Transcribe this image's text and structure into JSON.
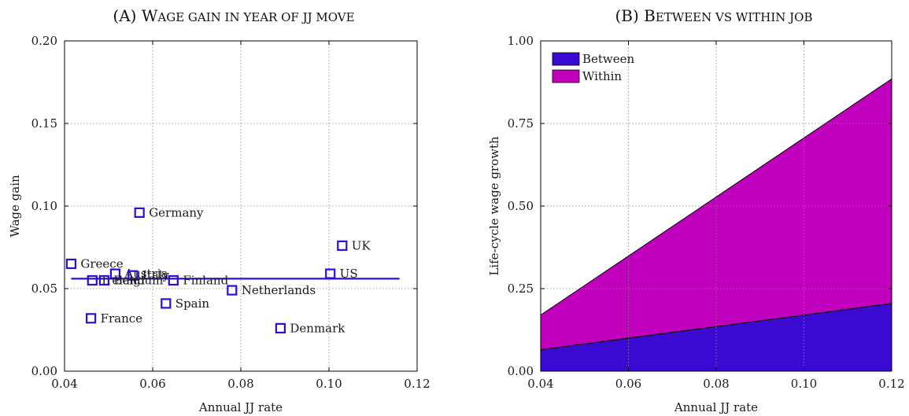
{
  "colors": {
    "marker": "#2a0fd6",
    "fit_line": "#2a0fd6",
    "between": "#3a0ad2",
    "within": "#c000bc"
  },
  "chart_data": [
    {
      "type": "scatter",
      "title": "(A) Wage gain in year of JJ move",
      "title_prefix": "(A) W",
      "title_rest": "AGE GAIN IN YEAR OF JJ MOVE",
      "xlabel": "Annual JJ rate",
      "ylabel": "Wage gain",
      "xlim": [
        0.04,
        0.12
      ],
      "ylim": [
        0.0,
        0.2
      ],
      "xticks": [
        "0.04",
        "0.06",
        "0.08",
        "0.10",
        "0.12"
      ],
      "yticks": [
        "0.00",
        "0.05",
        "0.10",
        "0.15",
        "0.20"
      ],
      "grid": true,
      "points": [
        {
          "label": "Germany",
          "x": 0.057,
          "y": 0.096
        },
        {
          "label": "UK",
          "x": 0.103,
          "y": 0.076
        },
        {
          "label": "Greece",
          "x": 0.0415,
          "y": 0.065
        },
        {
          "label": "US",
          "x": 0.1003,
          "y": 0.059
        },
        {
          "label": "Austria",
          "x": 0.0515,
          "y": 0.059
        },
        {
          "label": "Italy",
          "x": 0.0555,
          "y": 0.058
        },
        {
          "label": "Ireland",
          "x": 0.0463,
          "y": 0.055
        },
        {
          "label": "Belgium",
          "x": 0.049,
          "y": 0.055
        },
        {
          "label": "Finland",
          "x": 0.0647,
          "y": 0.055
        },
        {
          "label": "Netherlands",
          "x": 0.078,
          "y": 0.049
        },
        {
          "label": "Spain",
          "x": 0.063,
          "y": 0.041
        },
        {
          "label": "France",
          "x": 0.046,
          "y": 0.032
        },
        {
          "label": "Denmark",
          "x": 0.089,
          "y": 0.026
        }
      ],
      "fit_line": {
        "x": [
          0.0415,
          0.116
        ],
        "y": [
          0.056,
          0.056
        ]
      }
    },
    {
      "type": "area",
      "title": "(B) Between vs within job",
      "title_prefix": "(B) B",
      "title_rest": "ETWEEN VS WITHIN JOB",
      "xlabel": "Annual JJ rate",
      "ylabel": "Life-cycle wage growth",
      "xlim": [
        0.04,
        0.12
      ],
      "ylim": [
        0.0,
        1.0
      ],
      "xticks": [
        "0.04",
        "0.06",
        "0.08",
        "0.10",
        "0.12"
      ],
      "yticks": [
        "0.00",
        "0.25",
        "0.50",
        "0.75",
        "1.00"
      ],
      "grid": true,
      "legend_position": "top-left",
      "x": [
        0.04,
        0.12
      ],
      "series": [
        {
          "name": "Between",
          "values": [
            0.065,
            0.205
          ]
        },
        {
          "name": "Within",
          "values": [
            0.105,
            0.68
          ]
        }
      ]
    }
  ]
}
